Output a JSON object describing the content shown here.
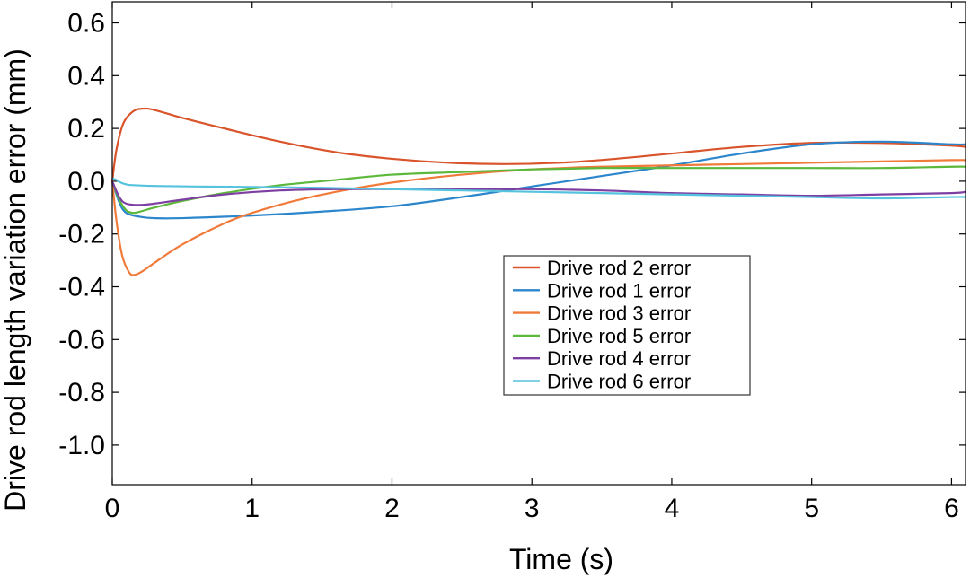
{
  "chart_data": {
    "type": "line",
    "xlabel": "Time (s)",
    "ylabel": "Drive rod length variation error (mm)",
    "xlim": [
      0,
      6.1
    ],
    "ylim": [
      -1.15,
      0.68
    ],
    "xticks": [
      0,
      1,
      2,
      3,
      4,
      5,
      6
    ],
    "xtick_labels": [
      "0",
      "1",
      "2",
      "3",
      "4",
      "5",
      "6"
    ],
    "yticks": [
      0.6,
      0.4,
      0.2,
      0.0,
      -0.2,
      -0.4,
      -0.6,
      -0.8,
      -1.0
    ],
    "ytick_labels": [
      "0.6",
      "0.4",
      "0.2",
      "0.0",
      "-0.2",
      "-0.4",
      "-0.6",
      "-0.8",
      "-1.0"
    ],
    "grid": false,
    "legend_position": "center-right",
    "series": [
      {
        "name": "Drive rod 2 error",
        "color": "#d9532b",
        "x": [
          0,
          0.03,
          0.08,
          0.15,
          0.22,
          0.3,
          0.5,
          0.8,
          1.2,
          1.6,
          2.0,
          2.4,
          2.8,
          3.2,
          3.6,
          4.0,
          4.5,
          5.0,
          5.5,
          6.0,
          6.1
        ],
        "y": [
          0.0,
          0.12,
          0.22,
          0.265,
          0.275,
          0.27,
          0.24,
          0.2,
          0.15,
          0.11,
          0.085,
          0.07,
          0.065,
          0.07,
          0.085,
          0.105,
          0.13,
          0.145,
          0.145,
          0.135,
          0.13
        ]
      },
      {
        "name": "Drive rod 1 error",
        "color": "#2b86cc",
        "x": [
          0,
          0.05,
          0.1,
          0.2,
          0.3,
          0.5,
          1.0,
          1.5,
          2.0,
          2.5,
          3.0,
          3.5,
          4.0,
          4.5,
          5.0,
          5.5,
          6.0,
          6.1
        ],
        "y": [
          0.0,
          -0.08,
          -0.12,
          -0.135,
          -0.14,
          -0.14,
          -0.13,
          -0.115,
          -0.095,
          -0.06,
          -0.02,
          0.02,
          0.06,
          0.105,
          0.14,
          0.15,
          0.14,
          0.14
        ]
      },
      {
        "name": "Drive rod 3 error",
        "color": "#f07a3a",
        "x": [
          0,
          0.03,
          0.07,
          0.12,
          0.16,
          0.22,
          0.3,
          0.5,
          0.8,
          1.0,
          1.3,
          1.6,
          2.0,
          2.5,
          3.0,
          3.5,
          4.0,
          4.5,
          5.0,
          5.5,
          6.0,
          6.1
        ],
        "y": [
          0.0,
          -0.15,
          -0.28,
          -0.345,
          -0.355,
          -0.34,
          -0.31,
          -0.24,
          -0.16,
          -0.12,
          -0.075,
          -0.04,
          -0.005,
          0.025,
          0.045,
          0.055,
          0.06,
          0.065,
          0.07,
          0.075,
          0.08,
          0.08
        ]
      },
      {
        "name": "Drive rod 5 error",
        "color": "#5bb83a",
        "x": [
          0,
          0.05,
          0.1,
          0.15,
          0.2,
          0.3,
          0.5,
          0.8,
          1.2,
          1.6,
          2.0,
          2.5,
          3.0,
          3.5,
          4.0,
          4.5,
          5.0,
          5.5,
          6.0,
          6.1
        ],
        "y": [
          0.0,
          -0.07,
          -0.11,
          -0.12,
          -0.115,
          -0.1,
          -0.075,
          -0.045,
          -0.015,
          0.005,
          0.025,
          0.035,
          0.045,
          0.05,
          0.05,
          0.05,
          0.05,
          0.05,
          0.055,
          0.055
        ]
      },
      {
        "name": "Drive rod 4 error",
        "color": "#7e3fa3",
        "x": [
          0,
          0.05,
          0.1,
          0.2,
          0.3,
          0.5,
          0.8,
          1.2,
          1.6,
          2.0,
          2.5,
          3.0,
          3.5,
          4.0,
          4.5,
          5.0,
          5.5,
          6.0,
          6.1
        ],
        "y": [
          0.0,
          -0.06,
          -0.085,
          -0.09,
          -0.085,
          -0.07,
          -0.05,
          -0.035,
          -0.03,
          -0.03,
          -0.03,
          -0.03,
          -0.035,
          -0.045,
          -0.05,
          -0.055,
          -0.05,
          -0.045,
          -0.04
        ]
      },
      {
        "name": "Drive rod 6 error",
        "color": "#55c3de",
        "x": [
          0,
          0.03,
          0.06,
          0.1,
          0.15,
          0.3,
          0.6,
          1.0,
          1.5,
          2.0,
          2.5,
          3.0,
          3.5,
          4.0,
          4.5,
          5.0,
          5.5,
          6.0,
          6.1
        ],
        "y": [
          0.01,
          0.005,
          -0.005,
          -0.012,
          -0.015,
          -0.018,
          -0.02,
          -0.022,
          -0.025,
          -0.03,
          -0.035,
          -0.04,
          -0.045,
          -0.05,
          -0.055,
          -0.06,
          -0.065,
          -0.06,
          -0.06
        ]
      }
    ]
  }
}
